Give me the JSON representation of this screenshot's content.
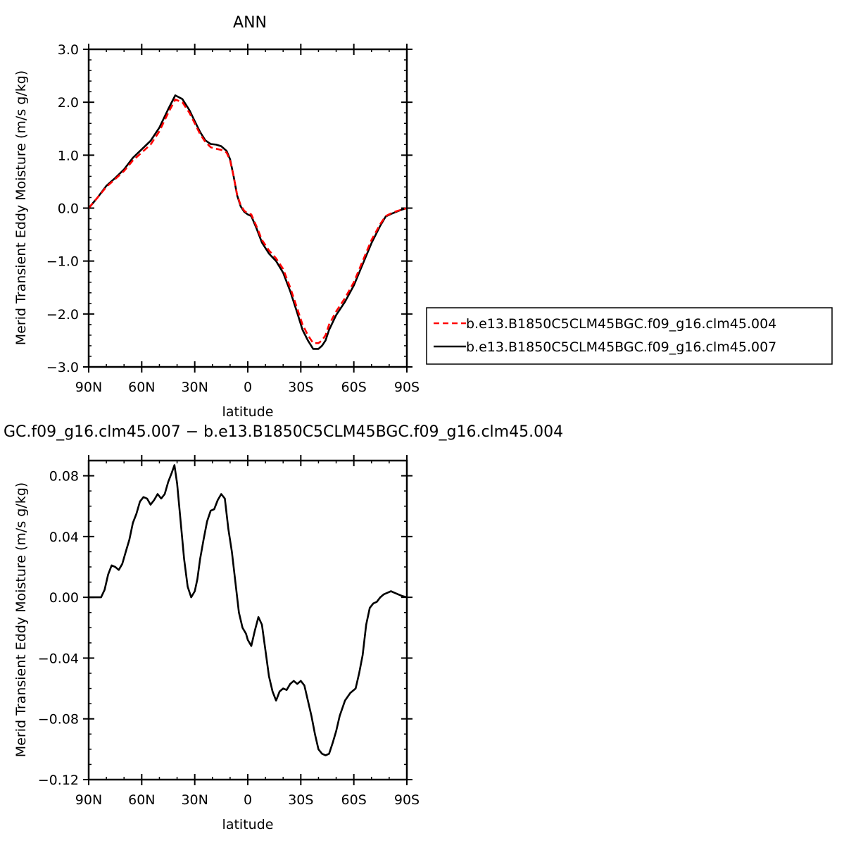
{
  "chart_data": [
    {
      "type": "line",
      "title": "ANN",
      "xlabel": "latitude",
      "ylabel": "Merid Transient Eddy Moisture (m/s g/kg)",
      "xlim": [
        90,
        -90
      ],
      "ylim": [
        -3.0,
        3.0
      ],
      "x_ticks": [
        90,
        60,
        30,
        0,
        -30,
        -60,
        -90
      ],
      "x_tick_labels": [
        "90N",
        "60N",
        "30N",
        "0",
        "30S",
        "60S",
        "90S"
      ],
      "y_ticks": [
        3,
        2,
        1,
        0,
        -1,
        -2,
        -3
      ],
      "y_tick_labels": [
        "3.0",
        "2.0",
        "1.0",
        "0.0",
        "−1.0",
        "−2.0",
        "−3.0"
      ],
      "legend_position": "right",
      "series": [
        {
          "name": "b.e13.B1850C5CLM45BGC.f09_g16.clm45.004",
          "color": "#ff0000",
          "dash": "dashed",
          "x": [
            90,
            85,
            80,
            75,
            70,
            65,
            60,
            55,
            50,
            45,
            41,
            37,
            33,
            30,
            27,
            24,
            21,
            18,
            15,
            12,
            10,
            8,
            6,
            4,
            2,
            0,
            -2,
            -5,
            -8,
            -12,
            -16,
            -20,
            -24,
            -28,
            -31,
            -34,
            -37,
            -40,
            -42,
            -44,
            -46,
            -50,
            -55,
            -60,
            -65,
            -70,
            -75,
            -78,
            -81,
            -84,
            -87,
            -90
          ],
          "y": [
            0.0,
            0.2,
            0.4,
            0.55,
            0.7,
            0.9,
            1.05,
            1.2,
            1.45,
            1.8,
            2.05,
            2.0,
            1.8,
            1.6,
            1.4,
            1.25,
            1.15,
            1.12,
            1.1,
            1.05,
            0.9,
            0.6,
            0.25,
            0.05,
            -0.05,
            -0.1,
            -0.12,
            -0.35,
            -0.6,
            -0.8,
            -0.95,
            -1.15,
            -1.5,
            -1.9,
            -2.2,
            -2.4,
            -2.55,
            -2.55,
            -2.5,
            -2.4,
            -2.2,
            -1.95,
            -1.7,
            -1.4,
            -1.0,
            -0.6,
            -0.3,
            -0.15,
            -0.1,
            -0.06,
            -0.03,
            0.0
          ]
        },
        {
          "name": "b.e13.B1850C5CLM45BGC.f09_g16.clm45.007",
          "color": "#000000",
          "dash": "solid",
          "x": [
            90,
            85,
            80,
            75,
            70,
            65,
            60,
            55,
            50,
            45,
            41,
            37,
            33,
            30,
            27,
            24,
            21,
            18,
            15,
            12,
            10,
            8,
            6,
            4,
            2,
            0,
            -2,
            -5,
            -8,
            -12,
            -16,
            -20,
            -24,
            -28,
            -31,
            -34,
            -37,
            -40,
            -42,
            -44,
            -46,
            -50,
            -55,
            -60,
            -65,
            -70,
            -75,
            -78,
            -81,
            -84,
            -87,
            -90
          ],
          "y": [
            0.0,
            0.2,
            0.42,
            0.57,
            0.73,
            0.95,
            1.11,
            1.27,
            1.52,
            1.87,
            2.13,
            2.06,
            1.85,
            1.64,
            1.44,
            1.28,
            1.21,
            1.2,
            1.17,
            1.08,
            0.92,
            0.6,
            0.24,
            0.03,
            -0.07,
            -0.12,
            -0.15,
            -0.39,
            -0.65,
            -0.86,
            -1.0,
            -1.22,
            -1.57,
            -1.98,
            -2.3,
            -2.5,
            -2.66,
            -2.66,
            -2.6,
            -2.5,
            -2.3,
            -2.02,
            -1.77,
            -1.46,
            -1.06,
            -0.66,
            -0.33,
            -0.16,
            -0.11,
            -0.07,
            -0.03,
            0.0
          ]
        }
      ]
    },
    {
      "type": "line",
      "title": "GC.f09_g16.clm45.007 − b.e13.B1850C5CLM45BGC.f09_g16.clm45.004",
      "xlabel": "latitude",
      "ylabel": "Merid Transient Eddy Moisture (m/s g/kg)",
      "xlim": [
        90,
        -90
      ],
      "ylim": [
        -0.12,
        0.09
      ],
      "x_ticks": [
        90,
        60,
        30,
        0,
        -30,
        -60,
        -90
      ],
      "x_tick_labels": [
        "90N",
        "60N",
        "30N",
        "0",
        "30S",
        "60S",
        "90S"
      ],
      "y_ticks": [
        0.08,
        0.04,
        0.0,
        -0.04,
        -0.08,
        -0.12
      ],
      "y_tick_labels": [
        "0.08",
        "0.04",
        "0.00",
        "−0.04",
        "−0.08",
        "−0.12"
      ],
      "series": [
        {
          "color": "#000000",
          "dash": "solid",
          "x": [
            90,
            88,
            86,
            83,
            81,
            79,
            77,
            75,
            73,
            71,
            69,
            67,
            65,
            63,
            61,
            59,
            57,
            55,
            53,
            51,
            49,
            47,
            45,
            43,
            41.5,
            40,
            38,
            36,
            34,
            32,
            30,
            28.5,
            27,
            25,
            23,
            21,
            19,
            17,
            15,
            13,
            11,
            9,
            7,
            5,
            3,
            1,
            0,
            -2,
            -4,
            -6,
            -8,
            -10,
            -12,
            -14,
            -16,
            -18,
            -20,
            -22,
            -24,
            -26,
            -28,
            -30,
            -32,
            -34,
            -36,
            -38,
            -40,
            -42,
            -44,
            -46,
            -48,
            -50,
            -52,
            -55,
            -58,
            -61,
            -63,
            -65,
            -67,
            -69,
            -71,
            -73,
            -75,
            -77,
            -79,
            -81,
            -83,
            -85,
            -87,
            -90
          ],
          "y": [
            0.0,
            0.0,
            0.0,
            0.0,
            0.005,
            0.015,
            0.021,
            0.02,
            0.018,
            0.022,
            0.03,
            0.038,
            0.049,
            0.055,
            0.063,
            0.066,
            0.065,
            0.061,
            0.064,
            0.068,
            0.065,
            0.068,
            0.076,
            0.082,
            0.087,
            0.075,
            0.05,
            0.025,
            0.007,
            0.0,
            0.004,
            0.012,
            0.025,
            0.038,
            0.05,
            0.057,
            0.058,
            0.064,
            0.068,
            0.065,
            0.045,
            0.03,
            0.01,
            -0.01,
            -0.02,
            -0.024,
            -0.028,
            -0.032,
            -0.022,
            -0.013,
            -0.018,
            -0.035,
            -0.052,
            -0.062,
            -0.068,
            -0.062,
            -0.06,
            -0.061,
            -0.057,
            -0.055,
            -0.057,
            -0.055,
            -0.058,
            -0.068,
            -0.078,
            -0.09,
            -0.1,
            -0.103,
            -0.104,
            -0.103,
            -0.096,
            -0.088,
            -0.078,
            -0.068,
            -0.063,
            -0.06,
            -0.05,
            -0.038,
            -0.018,
            -0.007,
            -0.004,
            -0.003,
            0.0,
            0.002,
            0.003,
            0.004,
            0.003,
            0.002,
            0.001,
            0.0
          ]
        }
      ]
    }
  ]
}
